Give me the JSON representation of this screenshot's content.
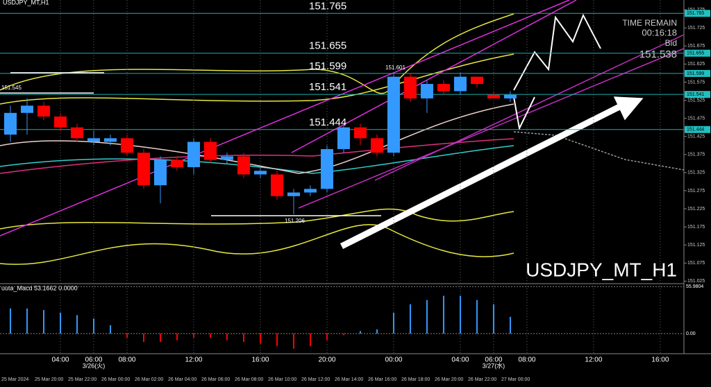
{
  "chart_data": {
    "type": "candlestick",
    "title": "USDJPY_MT,H1",
    "watermark": "USDJPY_MT_H1",
    "open": [
      151.43,
      151.49,
      151.51,
      151.48,
      151.45,
      151.41,
      151.41,
      151.42,
      151.38,
      151.29,
      151.36,
      151.34,
      151.41,
      151.36,
      151.37,
      151.32,
      151.32,
      151.26,
      151.27,
      151.28,
      151.39,
      151.45,
      151.42,
      151.38,
      151.59,
      151.53,
      151.57,
      151.55,
      151.59,
      151.54,
      151.53
    ],
    "high": [
      151.51,
      151.53,
      151.52,
      151.49,
      151.46,
      151.44,
      151.43,
      151.43,
      151.39,
      151.37,
      151.37,
      151.42,
      151.42,
      151.38,
      151.38,
      151.34,
      151.33,
      151.28,
      151.29,
      151.4,
      151.46,
      151.46,
      151.43,
      151.6,
      151.6,
      151.58,
      151.58,
      151.6,
      151.59,
      151.55,
      151.55
    ],
    "low": [
      151.41,
      151.43,
      151.47,
      151.44,
      151.41,
      151.4,
      151.4,
      151.37,
      151.28,
      151.24,
      151.33,
      151.32,
      151.35,
      151.35,
      151.31,
      151.31,
      151.25,
      151.21,
      151.26,
      151.27,
      151.38,
      151.4,
      151.37,
      151.37,
      151.52,
      151.49,
      151.54,
      151.54,
      151.56,
      151.53,
      151.52
    ],
    "close": [
      151.49,
      151.51,
      151.48,
      151.45,
      151.42,
      151.42,
      151.42,
      151.38,
      151.29,
      151.36,
      151.34,
      151.41,
      151.36,
      151.37,
      151.32,
      151.33,
      151.26,
      151.27,
      151.28,
      151.39,
      151.45,
      151.42,
      151.38,
      151.59,
      151.53,
      151.57,
      151.55,
      151.59,
      151.57,
      151.53,
      151.54
    ],
    "up_color": "#3399ff",
    "down_color": "#ff0000",
    "ylim": [
      151.02,
      151.802
    ],
    "yticks": [
      151.775,
      151.725,
      151.675,
      151.625,
      151.575,
      151.525,
      151.475,
      151.425,
      151.375,
      151.325,
      151.275,
      151.225,
      151.175,
      151.125,
      151.075,
      151.025
    ],
    "xlim": [
      -0.625,
      40.42
    ],
    "xticks": [
      {
        "value": 3,
        "label": "04:00"
      },
      {
        "value": 5,
        "label": "06:00"
      },
      {
        "value": 7,
        "label": "08:00"
      },
      {
        "value": 11,
        "label": "12:00"
      },
      {
        "value": 15,
        "label": "16:00"
      },
      {
        "value": 19,
        "label": "20:00"
      },
      {
        "value": 23,
        "label": "00:00"
      },
      {
        "value": 27,
        "label": "04:00"
      },
      {
        "value": 29,
        "label": "06:00"
      },
      {
        "value": 31,
        "label": "08:00"
      },
      {
        "value": 35,
        "label": "12:00"
      },
      {
        "value": 39,
        "label": "16:00"
      }
    ],
    "day_ticks": [
      {
        "value": 5,
        "label": "3/26(火)"
      },
      {
        "value": 29,
        "label": "3/27(水)"
      }
    ],
    "date_row": [
      "25 Mar 2024",
      "25 Mar 20:00",
      "25 Mar 22:00",
      "26 Mar 00:00",
      "26 Mar 02:00",
      "26 Mar 04:00",
      "26 Mar 06:00",
      "26 Mar 08:00",
      "26 Mar 10:00",
      "26 Mar 12:00",
      "26 Mar 14:00",
      "26 Mar 16:00",
      "26 Mar 18:00",
      "26 Mar 20:00",
      "26 Mar 22:00",
      "27 Mar 00:00"
    ],
    "levels": [
      151.765,
      151.655,
      151.599,
      151.541,
      151.444
    ],
    "price_notes": [
      151.545,
      151.601,
      151.206
    ],
    "time_remain_label": "TIME REMAIN",
    "time_remain": "00:16:18",
    "bid_label": "Bid",
    "bid": 151.538,
    "macd": {
      "label": "uuta_Macd 53.1662 0.0000",
      "ylim": [
        -24,
        57
      ],
      "color": "#3399ff",
      "values": [
        30,
        30,
        28,
        25,
        22,
        18,
        10,
        -5,
        -10,
        -10,
        -8,
        -5,
        -5,
        -8,
        -10,
        -12,
        -15,
        -18,
        -15,
        -8,
        -2,
        3,
        5,
        25,
        35,
        40,
        45,
        45,
        40,
        35,
        20
      ],
      "yticks": [
        55.9804,
        {
          "value": 0,
          "label": "0.00"
        }
      ]
    }
  }
}
